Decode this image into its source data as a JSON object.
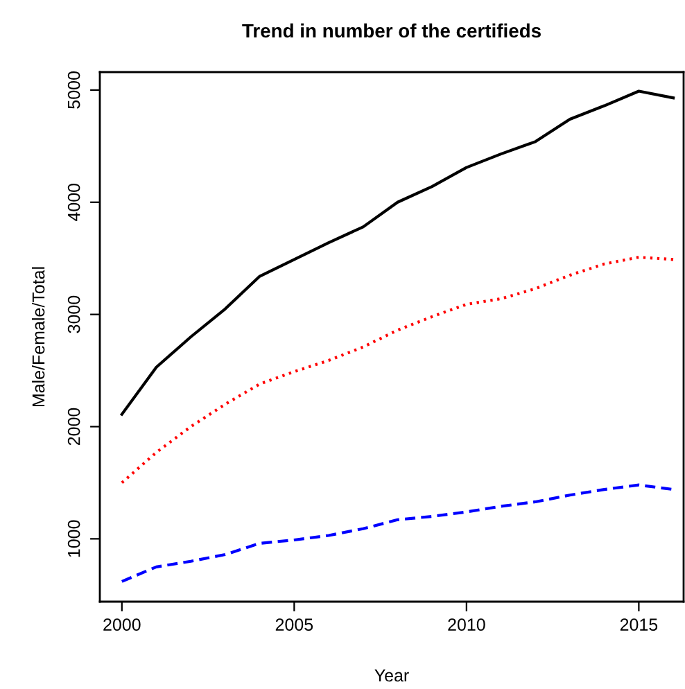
{
  "chart_data": {
    "type": "line",
    "title": "Trend in number of the certifieds",
    "xlabel": "Year",
    "ylabel": "Male/Female/Total",
    "x": [
      2000,
      2001,
      2002,
      2003,
      2004,
      2005,
      2006,
      2007,
      2008,
      2009,
      2010,
      2011,
      2012,
      2013,
      2014,
      2015,
      2016
    ],
    "series": [
      {
        "color": "#000000",
        "line_style": "solid",
        "values": [
          2110,
          2530,
          2800,
          3050,
          3340,
          3490,
          3640,
          3780,
          4000,
          4140,
          4310,
          4430,
          4540,
          4740,
          4860,
          4990,
          4930
        ]
      },
      {
        "color": "#ff0000",
        "line_style": "dotted",
        "values": [
          1500,
          1770,
          2000,
          2200,
          2380,
          2490,
          2590,
          2710,
          2860,
          2980,
          3090,
          3140,
          3230,
          3350,
          3450,
          3510,
          3490
        ]
      },
      {
        "color": "#0000ff",
        "line_style": "dashed",
        "values": [
          620,
          750,
          800,
          860,
          960,
          990,
          1030,
          1090,
          1170,
          1200,
          1240,
          1290,
          1330,
          1390,
          1440,
          1480,
          1440
        ]
      }
    ],
    "xlim": [
      1999.36,
      2016.3
    ],
    "ylim": [
      440,
      5160
    ],
    "xticks": [
      2000,
      2005,
      2010,
      2015
    ],
    "yticks": [
      1000,
      2000,
      3000,
      4000,
      5000
    ],
    "grid": false,
    "legend": false
  }
}
